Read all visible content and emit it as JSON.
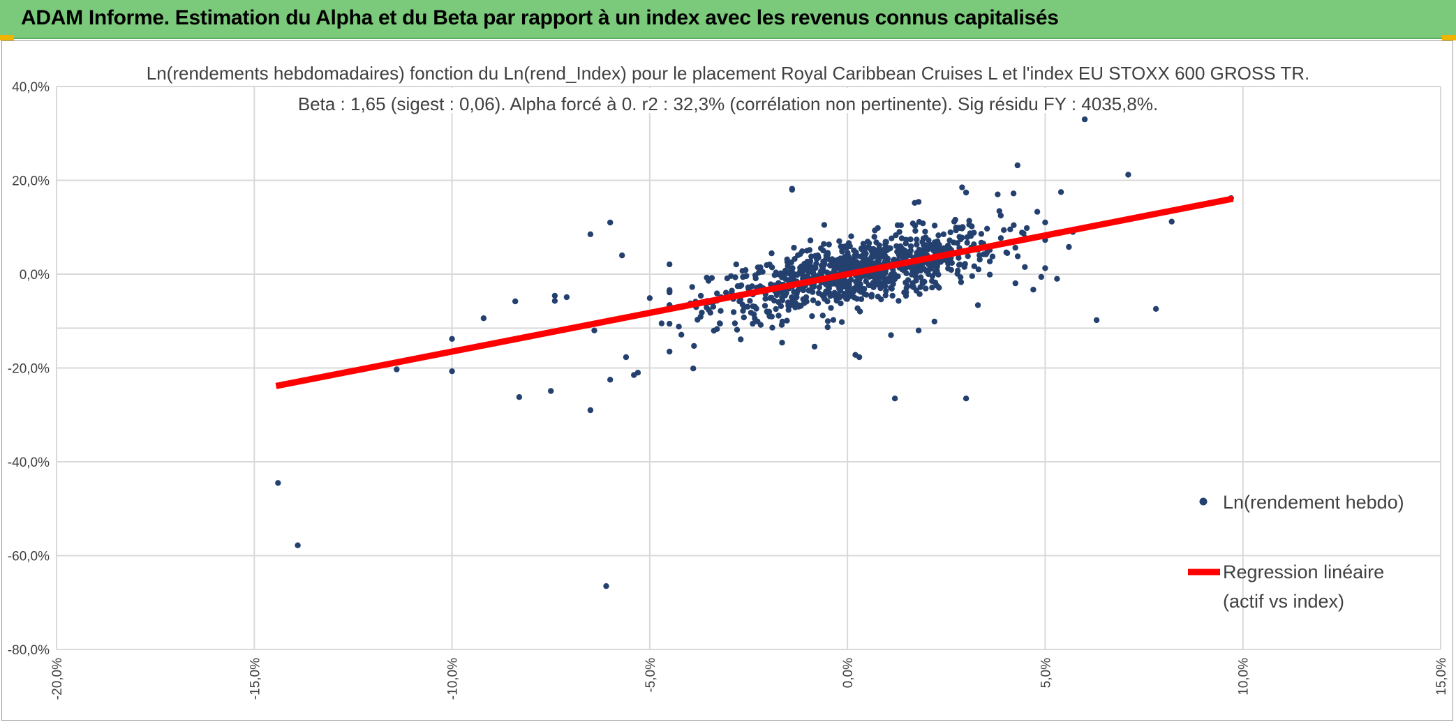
{
  "banner": {
    "title": "ADAM Informe. Estimation du Alpha et du Beta par rapport à un index avec les revenus connus capitalisés"
  },
  "colors": {
    "banner": "#7bc97b",
    "points": "#24406e",
    "regression": "#ff0000",
    "grid": "#d9d9d9"
  },
  "chart_data": {
    "type": "scatter",
    "title_line1": "Ln(rendements hebdomadaires) fonction du Ln(rend_Index) pour le placement Royal Caribbean Cruises L et l'index EU STOXX 600 GROSS TR.",
    "title_line2": "Beta : 1,65 (sigest : 0,06). Alpha forcé à 0. r2 : 32,3% (corrélation non pertinente). Sig résidu FY : 4035,8%.",
    "xlim": [
      -0.2,
      0.15
    ],
    "ylim": [
      -0.8,
      0.4
    ],
    "x_ticks": [
      "-20,0%",
      "-15,0%",
      "-10,0%",
      "-5,0%",
      "0,0%",
      "5,0%",
      "10,0%",
      "15,0%"
    ],
    "y_ticks": [
      "40,0%",
      "20,0%",
      "0,0%",
      "-20,0%",
      "-40,0%",
      "-60,0%",
      "-80,0%"
    ],
    "x_tick_values": [
      -0.2,
      -0.15,
      -0.1,
      -0.05,
      0.0,
      0.05,
      0.1,
      0.15
    ],
    "y_tick_values": [
      0.4,
      0.2,
      0.0,
      -0.2,
      -0.4,
      -0.6,
      -0.8
    ],
    "legend": [
      {
        "label": "Ln(rendement hebdo)",
        "kind": "marker"
      },
      {
        "label_line1": "Regression linéaire",
        "label_line2": "(actif vs index)",
        "kind": "line"
      }
    ],
    "regression": {
      "beta": 1.65,
      "alpha": 0,
      "x_range": [
        -0.1445,
        0.0975
      ]
    },
    "series": [
      {
        "name": "Ln(rendement hebdo)",
        "cluster": {
          "count": 900,
          "x_mean": 0.002,
          "x_std": 0.018,
          "beta": 1.65,
          "resid_std": 0.035
        },
        "outliers": [
          [
            -0.144,
            -0.445
          ],
          [
            -0.139,
            -0.578
          ],
          [
            -0.061,
            -0.665
          ],
          [
            -0.065,
            -0.29
          ],
          [
            -0.083,
            -0.262
          ],
          [
            -0.075,
            -0.249
          ],
          [
            -0.114,
            -0.203
          ],
          [
            -0.1,
            -0.207
          ],
          [
            -0.1,
            -0.138
          ],
          [
            -0.092,
            -0.094
          ],
          [
            -0.084,
            -0.058
          ],
          [
            -0.074,
            -0.046
          ],
          [
            -0.074,
            -0.057
          ],
          [
            -0.071,
            -0.049
          ],
          [
            -0.065,
            0.085
          ],
          [
            -0.06,
            0.11
          ],
          [
            -0.057,
            0.04
          ],
          [
            -0.06,
            -0.225
          ],
          [
            -0.053,
            -0.21
          ],
          [
            -0.054,
            -0.215
          ],
          [
            -0.056,
            -0.177
          ],
          [
            -0.039,
            -0.201
          ],
          [
            -0.064,
            -0.12
          ],
          [
            -0.045,
            -0.165
          ],
          [
            -0.042,
            -0.129
          ],
          [
            -0.05,
            -0.051
          ],
          [
            -0.047,
            -0.105
          ],
          [
            -0.045,
            0.021
          ],
          [
            0.012,
            -0.265
          ],
          [
            0.03,
            -0.265
          ],
          [
            0.002,
            -0.172
          ],
          [
            0.003,
            -0.177
          ],
          [
            0.06,
            0.33
          ],
          [
            0.071,
            0.212
          ],
          [
            0.043,
            0.232
          ],
          [
            0.063,
            -0.098
          ],
          [
            0.078,
            -0.074
          ],
          [
            0.082,
            0.112
          ],
          [
            0.097,
            0.162
          ],
          [
            0.054,
            0.175
          ],
          [
            0.048,
            0.133
          ],
          [
            0.053,
            -0.01
          ],
          [
            0.049,
            -0.006
          ],
          [
            0.057,
            0.09
          ],
          [
            -0.014,
            0.182
          ],
          [
            -0.014,
            0.18
          ],
          [
            0.029,
            0.185
          ],
          [
            0.03,
            0.174
          ],
          [
            0.042,
            0.172
          ],
          [
            0.038,
            0.17
          ],
          [
            0.033,
            -0.066
          ],
          [
            0.036,
            -0.001
          ],
          [
            0.047,
            -0.033
          ],
          [
            0.056,
            0.058
          ],
          [
            0.027,
            0.112
          ],
          [
            0.017,
            0.152
          ],
          [
            0.018,
            0.154
          ],
          [
            0.022,
            -0.101
          ],
          [
            0.011,
            -0.13
          ],
          [
            0.018,
            -0.12
          ],
          [
            -0.027,
            -0.139
          ],
          [
            -0.033,
            -0.117
          ],
          [
            -0.019,
            -0.114
          ],
          [
            -0.005,
            -0.113
          ]
        ]
      }
    ]
  }
}
